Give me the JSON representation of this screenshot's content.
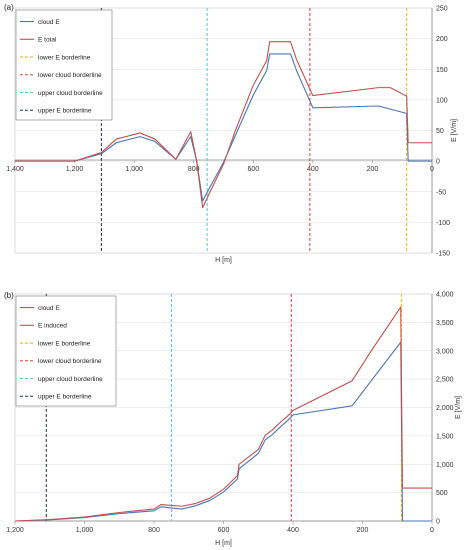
{
  "chart_data": [
    {
      "type": "line",
      "panel_label": "(a)",
      "xlabel": "H [m]",
      "ylabel": "E [V/m]",
      "xlim": [
        1400,
        0
      ],
      "ylim": [
        -150,
        250
      ],
      "x_ticks": [
        1400,
        1200,
        1000,
        800,
        600,
        400,
        200,
        0
      ],
      "x_tick_labels": [
        "1,400",
        "1,200",
        "1,000",
        "800",
        "600",
        "400",
        "200",
        "0"
      ],
      "y_ticks": [
        -150,
        -100,
        -50,
        0,
        50,
        100,
        150,
        200,
        250
      ],
      "y_tick_labels": [
        "-150",
        "-100",
        "-50",
        "0",
        "50",
        "100",
        "150",
        "200",
        "250"
      ],
      "legend_position": "top-left",
      "series": [
        {
          "name": "cloud E",
          "color": "#4a76b5",
          "x": [
            1400,
            1200,
            1110,
            1060,
            980,
            930,
            860,
            810,
            790,
            770,
            745,
            700,
            660,
            600,
            555,
            545,
            475,
            455,
            400,
            180,
            85,
            80,
            0
          ],
          "y": [
            0,
            0,
            12,
            30,
            40,
            32,
            3,
            40,
            0,
            -65,
            -42,
            -2,
            42,
            108,
            148,
            175,
            175,
            148,
            87,
            90,
            78,
            0,
            0
          ]
        },
        {
          "name": "E total",
          "color": "#c0504d",
          "x": [
            1400,
            1200,
            1110,
            1060,
            980,
            930,
            860,
            810,
            790,
            770,
            745,
            700,
            660,
            600,
            555,
            545,
            475,
            455,
            400,
            180,
            140,
            85,
            80,
            0
          ],
          "y": [
            0,
            0,
            14,
            36,
            46,
            36,
            3,
            48,
            0,
            -76,
            -50,
            -5,
            50,
            124,
            164,
            195,
            195,
            166,
            107,
            120,
            120,
            106,
            30,
            30
          ]
        }
      ],
      "vlines": [
        {
          "name": "lower E borderline",
          "x": 85,
          "color": "#f5b800"
        },
        {
          "name": "lower cloud borderline",
          "x": 410,
          "color": "#e0403a"
        },
        {
          "name": "upper cloud borderline",
          "x": 755,
          "color": "#4ec3e6"
        },
        {
          "name": "upper E borderline",
          "x": 1110,
          "color": "#1f2d4f"
        }
      ]
    },
    {
      "type": "line",
      "panel_label": "(b)",
      "xlabel": "H [m]",
      "ylabel": "E [V/m]",
      "xlim": [
        1200,
        0
      ],
      "ylim": [
        0,
        4000
      ],
      "x_ticks": [
        1200,
        1000,
        800,
        600,
        400,
        200,
        0
      ],
      "x_tick_labels": [
        "1,200",
        "1,000",
        "800",
        "600",
        "400",
        "200",
        "0"
      ],
      "y_ticks": [
        0,
        500,
        1000,
        1500,
        2000,
        2500,
        3000,
        3500,
        4000
      ],
      "y_tick_labels": [
        "0",
        "500",
        "1,000",
        "1,500",
        "2,000",
        "2,500",
        "3,000",
        "3,500",
        "4,000"
      ],
      "legend_position": "top-left",
      "series": [
        {
          "name": "cloud E",
          "color": "#4a76b5",
          "x": [
            1200,
            1100,
            1000,
            900,
            800,
            780,
            720,
            680,
            640,
            600,
            560,
            555,
            500,
            480,
            460,
            440,
            410,
            400,
            230,
            90,
            85,
            0
          ],
          "y": [
            0,
            20,
            60,
            130,
            180,
            250,
            210,
            270,
            360,
            510,
            740,
            920,
            1190,
            1430,
            1520,
            1640,
            1800,
            1870,
            2030,
            3150,
            0,
            0
          ]
        },
        {
          "name": "E induced",
          "color": "#c0504d",
          "x": [
            1200,
            1100,
            1000,
            900,
            800,
            780,
            720,
            680,
            640,
            600,
            560,
            555,
            500,
            480,
            460,
            440,
            410,
            400,
            230,
            180,
            90,
            85,
            0
          ],
          "y": [
            0,
            25,
            70,
            150,
            210,
            290,
            260,
            310,
            400,
            560,
            800,
            1000,
            1260,
            1510,
            1600,
            1720,
            1880,
            1950,
            2470,
            2950,
            3770,
            580,
            580
          ]
        }
      ],
      "vlines": [
        {
          "name": "lower E borderline",
          "x": 88,
          "color": "#f5b800"
        },
        {
          "name": "lower cloud borderline",
          "x": 405,
          "color": "#e0403a"
        },
        {
          "name": "upper cloud borderline",
          "x": 750,
          "color": "#4ec3e6"
        },
        {
          "name": "upper E borderline",
          "x": 1110,
          "color": "#1f2d4f"
        }
      ]
    }
  ]
}
